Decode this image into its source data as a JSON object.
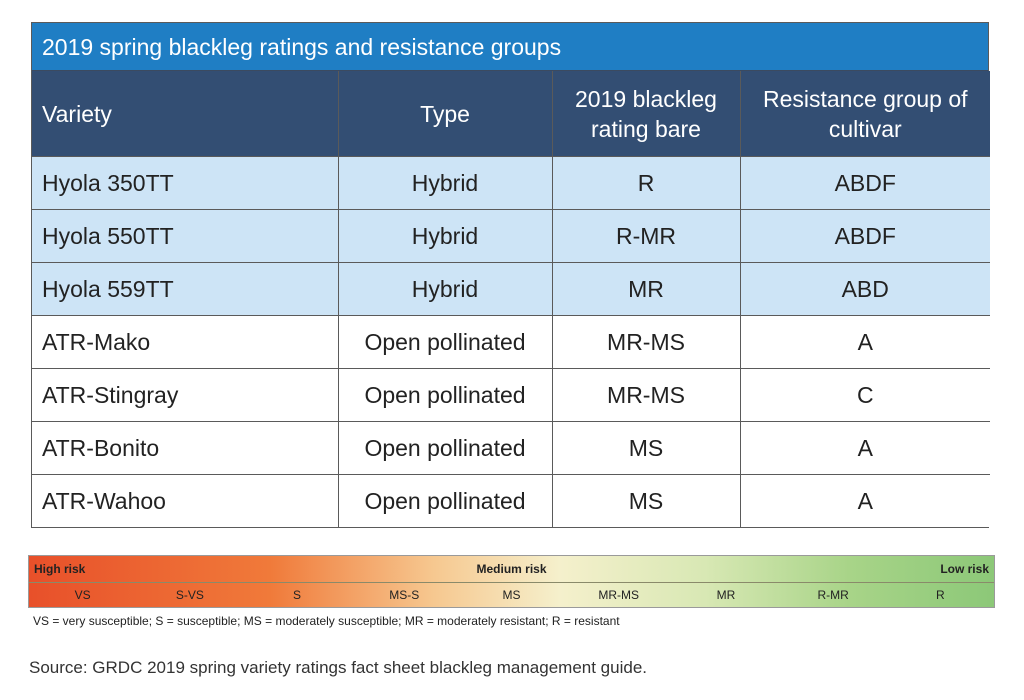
{
  "table": {
    "title": "2019 spring blackleg ratings and resistance groups",
    "headers": [
      "Variety",
      "Type",
      "2019 blackleg rating bare",
      "Resistance group of cultivar"
    ],
    "rows": [
      {
        "variety": "Hyola 350TT",
        "type": "Hybrid",
        "rating": "R",
        "group": "ABDF"
      },
      {
        "variety": "Hyola 550TT",
        "type": "Hybrid",
        "rating": "R-MR",
        "group": "ABDF"
      },
      {
        "variety": "Hyola 559TT",
        "type": "Hybrid",
        "rating": "MR",
        "group": "ABD"
      },
      {
        "variety": "ATR-Mako",
        "type": "Open pollinated",
        "rating": "MR-MS",
        "group": "A"
      },
      {
        "variety": "ATR-Stingray",
        "type": "Open pollinated",
        "rating": "MR-MS",
        "group": "C"
      },
      {
        "variety": "ATR-Bonito",
        "type": "Open pollinated",
        "rating": "MS",
        "group": "A"
      },
      {
        "variety": "ATR-Wahoo",
        "type": "Open pollinated",
        "rating": "MS",
        "group": "A"
      }
    ],
    "colors": {
      "title_bg": "#1f7ec4",
      "header_bg": "#334e73",
      "hybrid_row_bg": "#cde4f6"
    }
  },
  "scale": {
    "high_label": "High risk",
    "medium_label": "Medium risk",
    "low_label": "Low risk",
    "ratings": [
      "VS",
      "S-VS",
      "S",
      "MS-S",
      "MS",
      "MR-MS",
      "MR",
      "R-MR",
      "R"
    ],
    "colors": {
      "high": "#e8502a",
      "medium": "#f5f0cc",
      "low": "#8cc878"
    }
  },
  "legend_note": "VS = very susceptible; S = susceptible; MS = moderately susceptible; MR = moderately resistant; R = resistant",
  "source": "Source: GRDC 2019 spring variety ratings fact sheet blackleg management guide."
}
